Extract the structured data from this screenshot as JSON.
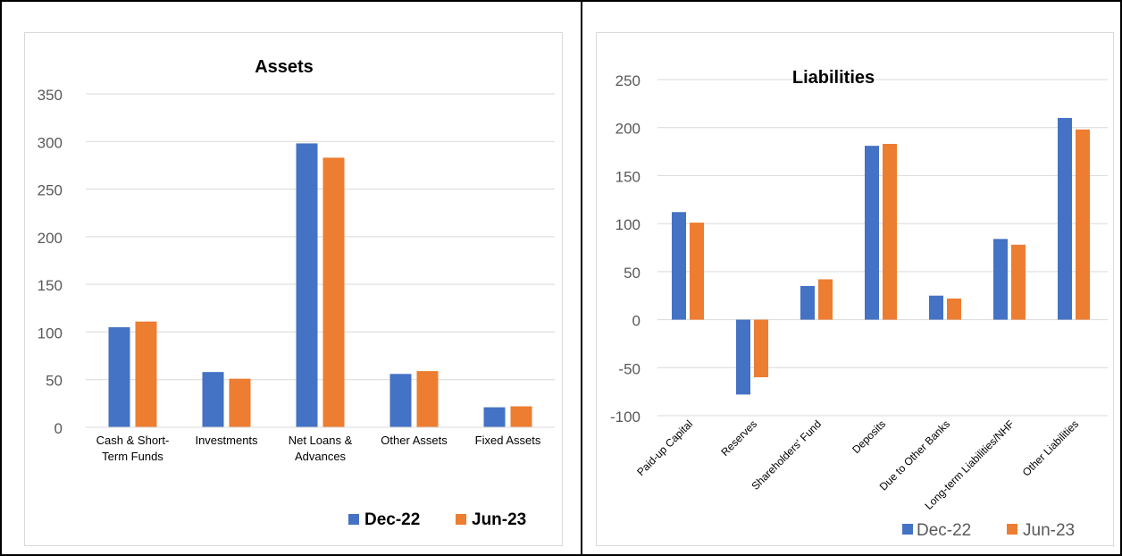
{
  "colors": {
    "dec": "#4472c4",
    "jun": "#ed7d31",
    "grid": "#d9d9d9",
    "text": "#595959"
  },
  "chart_data": [
    {
      "type": "bar",
      "title": "Assets",
      "categories": [
        "Cash & Short-Term Funds",
        "Investments",
        "Net Loans & Advances",
        "Other Assets",
        "Fixed Assets"
      ],
      "category_lines": [
        [
          "Cash & Short-",
          "Term Funds"
        ],
        [
          "Investments"
        ],
        [
          "Net Loans &",
          "Advances"
        ],
        [
          "Other Assets"
        ],
        [
          "Fixed Assets"
        ]
      ],
      "series": [
        {
          "name": "Dec-22",
          "values": [
            105,
            58,
            298,
            56,
            21
          ]
        },
        {
          "name": "Jun-23",
          "values": [
            111,
            51,
            283,
            59,
            22
          ]
        }
      ],
      "ylim": [
        0,
        350
      ],
      "yticks": [
        "0",
        "50",
        "100",
        "150",
        "200",
        "250",
        "300",
        "350"
      ],
      "legend_position": "bottom-right",
      "grid": true
    },
    {
      "type": "bar",
      "title": "Liabilities",
      "categories": [
        "Paid-up Capital",
        "Reserves",
        "Shareholders' Fund",
        "Deposits",
        "Due to Other Banks",
        "Long-term Liabilities/NHF",
        "Other Liabilities"
      ],
      "series": [
        {
          "name": "Dec-22",
          "values": [
            112,
            -78,
            35,
            181,
            25,
            84,
            210
          ]
        },
        {
          "name": "Jun-23",
          "values": [
            101,
            -60,
            42,
            183,
            22,
            78,
            198
          ]
        }
      ],
      "ylim": [
        -100,
        250
      ],
      "yticks": [
        "-100",
        "-50",
        "0",
        "50",
        "100",
        "150",
        "200",
        "250"
      ],
      "legend_position": "bottom",
      "grid": true
    }
  ]
}
